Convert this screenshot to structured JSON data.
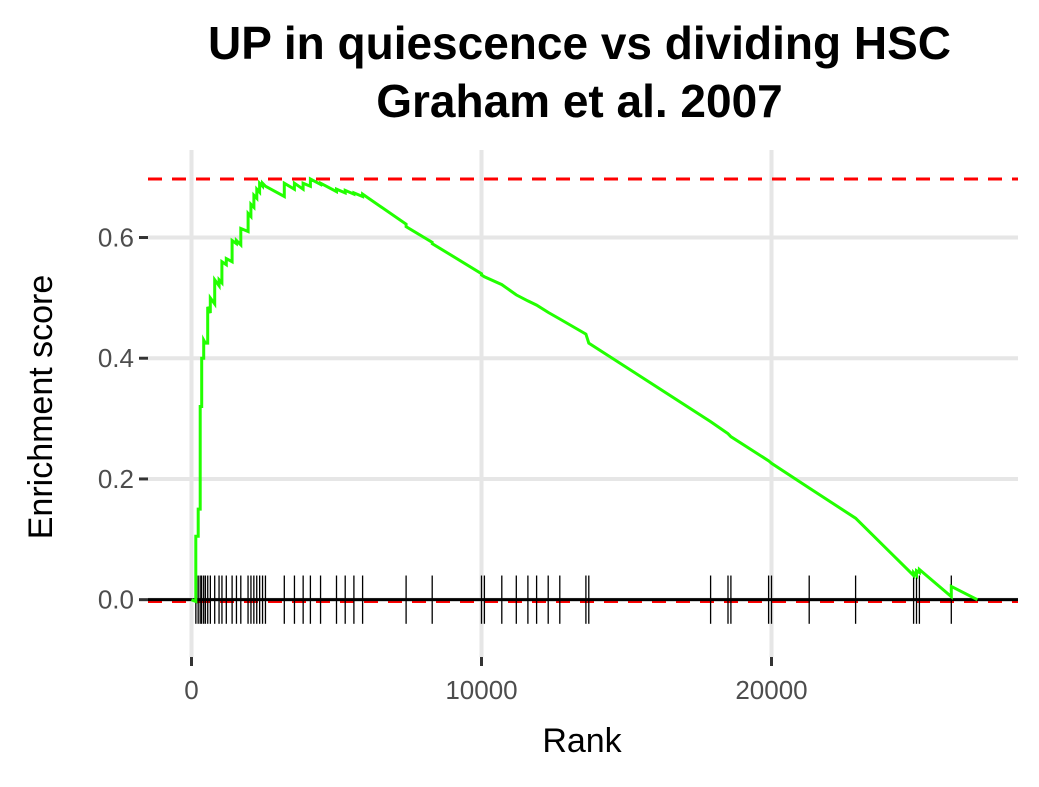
{
  "chart_data": {
    "type": "line",
    "title": [
      "UP in quiescence vs dividing HSC",
      "Graham et al. 2007"
    ],
    "xlabel": "Rank",
    "ylabel": "Enrichment score",
    "xlim": [
      -1500,
      28500
    ],
    "ylim": [
      -0.095,
      0.745
    ],
    "x_ticks": [
      0,
      10000,
      20000
    ],
    "x_tick_labels": [
      "0",
      "10000",
      "20000"
    ],
    "y_ticks": [
      0.0,
      0.2,
      0.4,
      0.6
    ],
    "y_tick_labels": [
      "0.0",
      "0.2",
      "0.4",
      "0.6"
    ],
    "grid": true,
    "colors": {
      "curve": "#22ff00",
      "dashed": "#ff0000",
      "baseline": "#000000",
      "ticks": "#000000",
      "grid": "#e6e6e6"
    },
    "reference_lines": {
      "max_score": 0.697,
      "min_score": -0.003,
      "baseline": 0.0
    },
    "hit_ranks": [
      150,
      230,
      300,
      350,
      420,
      480,
      560,
      650,
      800,
      950,
      1050,
      1200,
      1400,
      1550,
      1700,
      1950,
      2050,
      2150,
      2250,
      2350,
      2450,
      2550,
      3200,
      3550,
      3850,
      4100,
      4450,
      5000,
      5300,
      5600,
      5900,
      7400,
      8300,
      10000,
      10100,
      10700,
      11200,
      11600,
      11900,
      12300,
      12700,
      13600,
      13700,
      17900,
      18500,
      18600,
      19900,
      20000,
      21300,
      22900,
      24900,
      25000,
      25100,
      26200
    ],
    "series": [
      {
        "x": [
          0,
          150,
          150,
          230,
          230,
          300,
          300,
          350,
          350,
          420,
          420,
          480,
          480,
          560,
          560,
          650,
          650,
          800,
          800,
          950,
          950,
          1050,
          1050,
          1200,
          1200,
          1400,
          1400,
          1550,
          1550,
          1700,
          1700,
          1950,
          1950,
          2050,
          2050,
          2150,
          2150,
          2250,
          2250,
          2350,
          2350,
          2450,
          2450,
          2550,
          3200,
          3200,
          3550,
          3550,
          3850,
          3850,
          4100,
          4100,
          4450,
          4450,
          5000,
          5000,
          5300,
          5300,
          5600,
          5600,
          5900,
          5900,
          7400,
          7400,
          8300,
          8300,
          10000,
          10000,
          10100,
          10100,
          10700,
          10700,
          11200,
          11200,
          11600,
          11600,
          11900,
          11900,
          12300,
          12300,
          12700,
          12700,
          13600,
          13600,
          13700,
          13700,
          17900,
          17900,
          18500,
          18500,
          18600,
          18600,
          19900,
          19900,
          20000,
          20000,
          21300,
          21300,
          22900,
          22900,
          24900,
          24900,
          25000,
          25000,
          25100,
          25100,
          26200,
          26200,
          27100
        ],
        "y": [
          0.0,
          -0.003,
          0.105,
          0.105,
          0.15,
          0.15,
          0.32,
          0.32,
          0.4,
          0.4,
          0.43,
          0.425,
          0.425,
          0.425,
          0.485,
          0.475,
          0.5,
          0.49,
          0.53,
          0.52,
          0.53,
          0.525,
          0.56,
          0.555,
          0.565,
          0.56,
          0.595,
          0.59,
          0.595,
          0.588,
          0.615,
          0.61,
          0.64,
          0.635,
          0.655,
          0.65,
          0.67,
          0.665,
          0.68,
          0.675,
          0.69,
          0.685,
          0.69,
          0.685,
          0.668,
          0.69,
          0.68,
          0.69,
          0.68,
          0.69,
          0.685,
          0.697,
          0.688,
          0.69,
          0.676,
          0.68,
          0.674,
          0.678,
          0.672,
          0.674,
          0.668,
          0.672,
          0.622,
          0.618,
          0.592,
          0.59,
          0.54,
          0.538,
          0.535,
          0.535,
          0.522,
          0.522,
          0.505,
          0.505,
          0.495,
          0.495,
          0.488,
          0.488,
          0.476,
          0.476,
          0.465,
          0.465,
          0.44,
          0.44,
          0.425,
          0.425,
          0.295,
          0.295,
          0.275,
          0.275,
          0.27,
          0.27,
          0.23,
          0.23,
          0.226,
          0.226,
          0.185,
          0.185,
          0.135,
          0.135,
          0.04,
          0.045,
          0.04,
          0.048,
          0.045,
          0.05,
          0.005,
          0.022,
          0.0
        ]
      }
    ]
  }
}
